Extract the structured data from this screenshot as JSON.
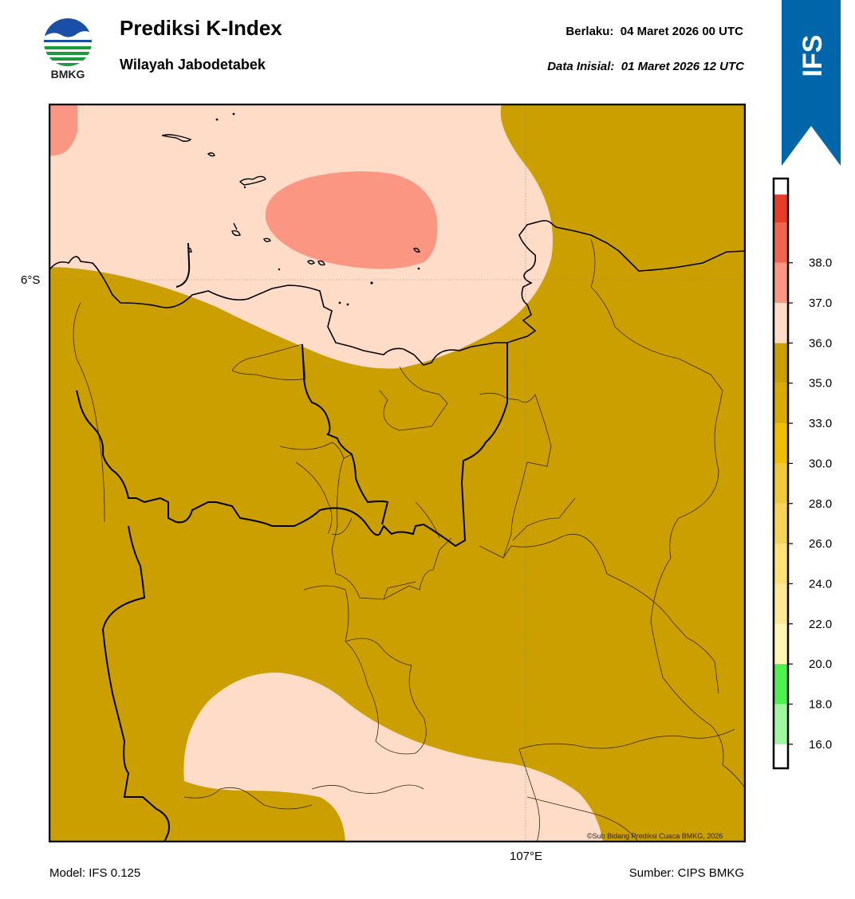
{
  "header": {
    "logo_text": "BMKG",
    "title": "Prediksi K-Index",
    "subtitle": "Wilayah Jabodetabek",
    "valid_time": "Berlaku:  04 Maret 2026 00 UTC",
    "initial_time": "Data Inisial:  01 Maret 2026 12 UTC",
    "ribbon_label": "IFS"
  },
  "map": {
    "lat_label": "6°S",
    "lon_label": "107°E",
    "credit": "©Sub Bidang Prediksi Cuaca BMKG, 2026",
    "field_colors": {
      "land_fill": "#cc9f00",
      "zone_35_36": "#ffdcc8",
      "zone_36_37": "#fa9682"
    }
  },
  "colorbar": {
    "tick_labels": [
      "16.0",
      "18.0",
      "20.0",
      "22.0",
      "24.0",
      "26.0",
      "28.0",
      "30.0",
      "33.0",
      "35.0",
      "36.0",
      "37.0",
      "38.0"
    ],
    "colors": [
      "#ffffff",
      "#a0f5a0",
      "#50f050",
      "#fff5b4",
      "#ffe896",
      "#ffe178",
      "#f5d25a",
      "#f0c83c",
      "#f0be00",
      "#d9aa00",
      "#cc9f00",
      "#ffdcc8",
      "#fa9682",
      "#f06450",
      "#e63c28"
    ]
  },
  "footer": {
    "model": "Model: IFS 0.125",
    "source": "Sumber: CIPS BMKG"
  }
}
